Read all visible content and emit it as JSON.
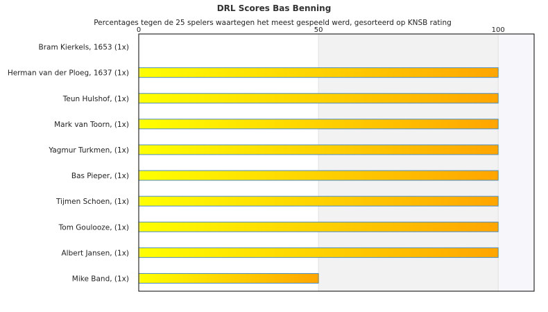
{
  "chart_data": {
    "type": "bar",
    "orientation": "horizontal",
    "title": "DRL Scores Bas Benning",
    "subtitle": "Percentages tegen de 25 spelers waartegen het meest gespeeld werd, gesorteerd op KNSB rating",
    "categories": [
      "Bram Kierkels, 1653 (1x)",
      "Herman van der Ploeg, 1637 (1x)",
      "Teun Hulshof,  (1x)",
      "Mark van Toorn,  (1x)",
      "Yagmur Turkmen,  (1x)",
      "Bas Pieper,  (1x)",
      "Tijmen Schoen,  (1x)",
      "Tom Goulooze,  (1x)",
      "Albert Jansen,  (1x)",
      "Mike Band,  (1x)"
    ],
    "values": [
      0,
      100,
      100,
      100,
      100,
      100,
      100,
      100,
      100,
      50
    ],
    "xlim": [
      0,
      110
    ],
    "xticks": [
      0,
      50,
      100
    ],
    "xaxis_position": "top",
    "grid": false,
    "legend": "none",
    "colors": {
      "bar_start": "#ffff00",
      "bar_end": "#ffa500",
      "bar_stroke": "#4a8cc4",
      "band_light": "#ffffff",
      "band_mid": "#f2f2f2",
      "band_right": "#f7f7fb",
      "frame": "#000000"
    }
  }
}
